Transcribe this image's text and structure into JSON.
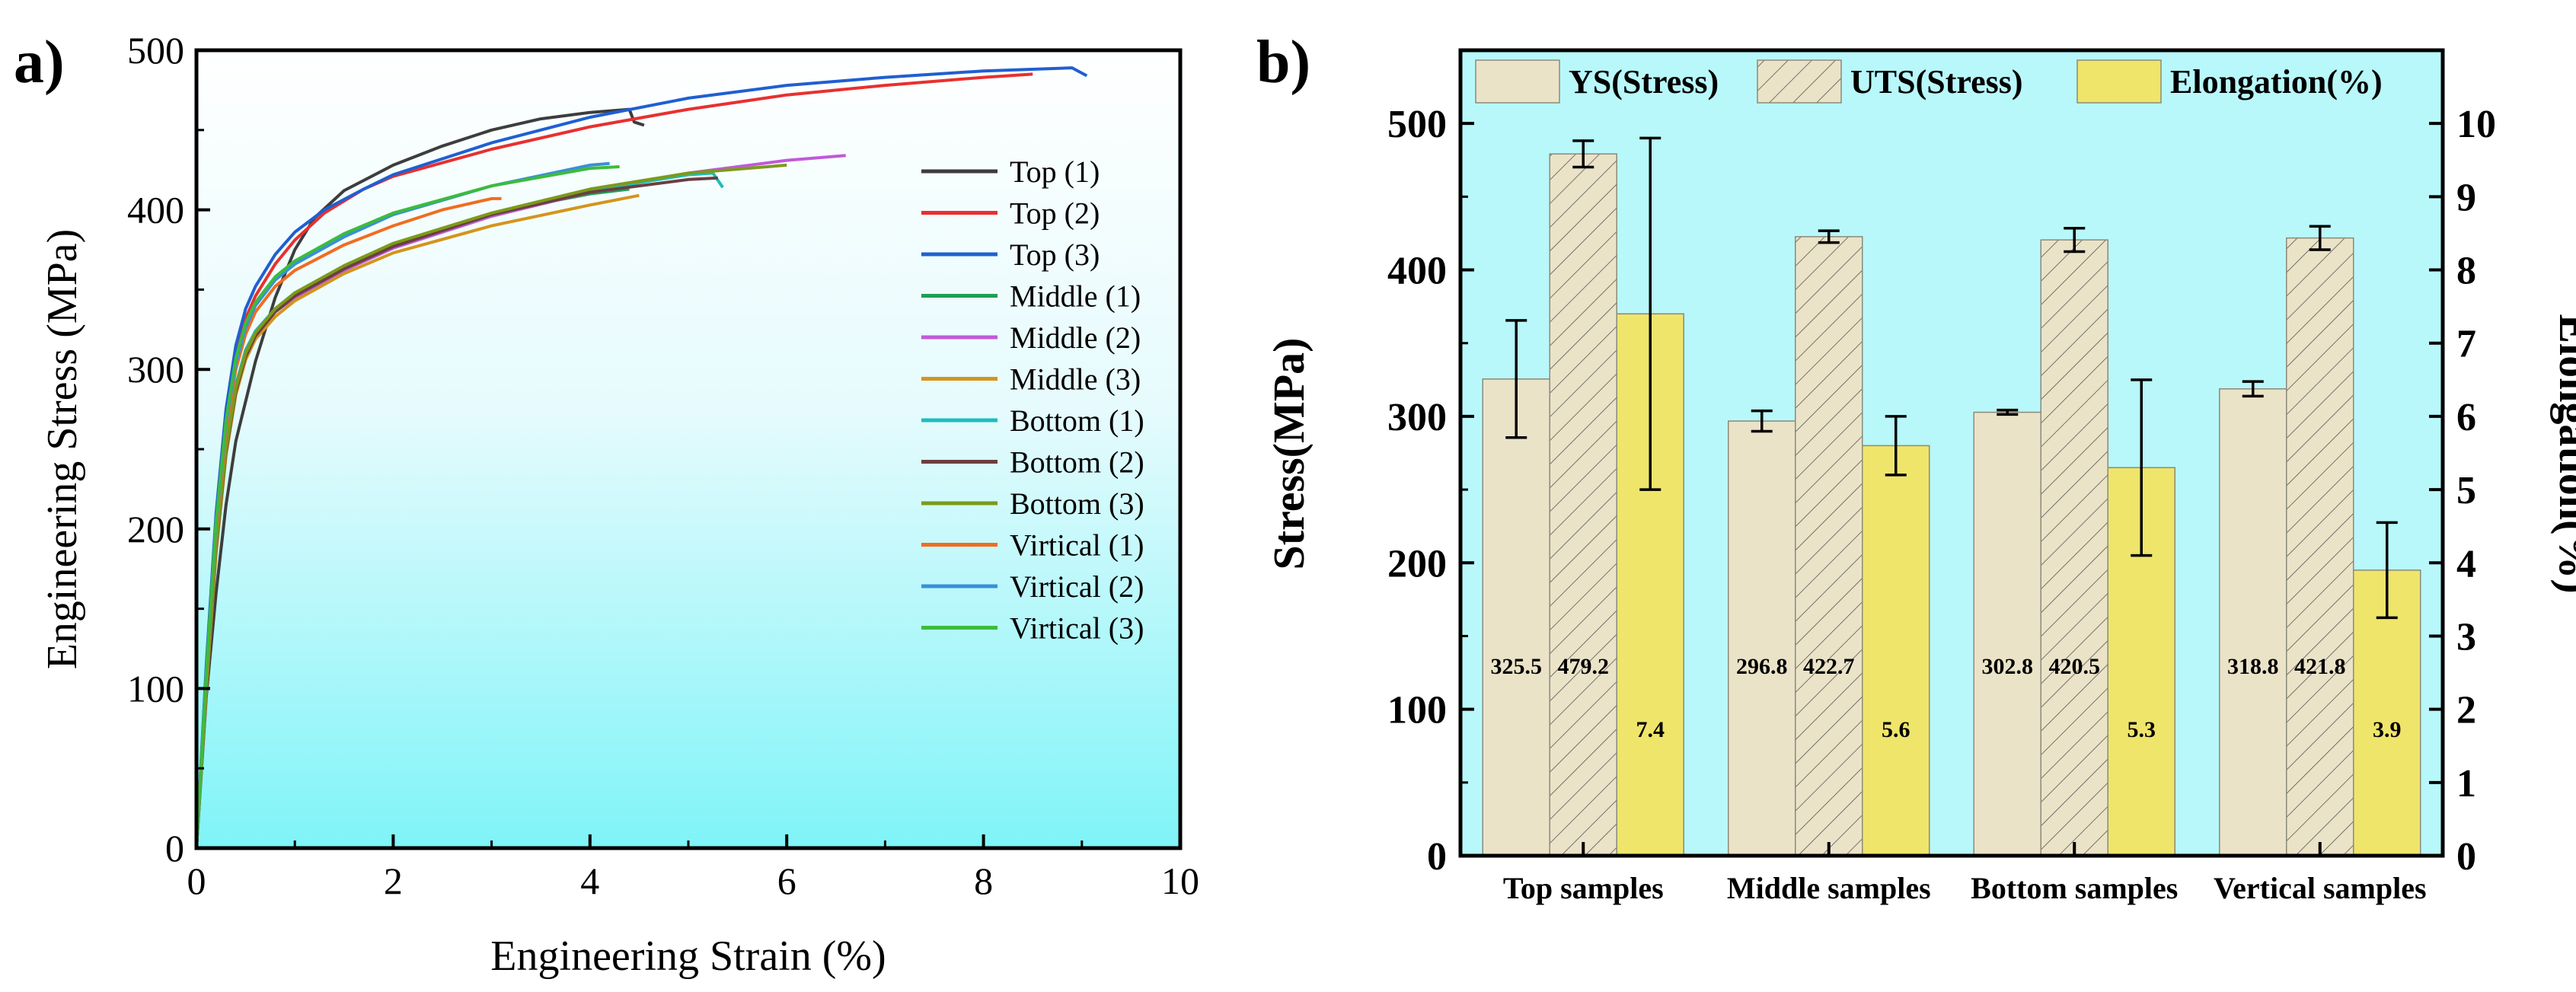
{
  "chart_data": [
    {
      "panel": "a)",
      "type": "line",
      "xlabel": "Engineering Strain (%)",
      "ylabel": "Engineering Stress (MPa)",
      "xlim": [
        0,
        10
      ],
      "ylim": [
        0,
        500
      ],
      "xticks": [
        0,
        2,
        4,
        6,
        8,
        10
      ],
      "yticks": [
        0,
        100,
        200,
        300,
        400,
        500
      ],
      "legend_position": "right-upper",
      "series": [
        {
          "name": "Top (1)",
          "color": "#3d3d3d",
          "points": [
            [
              0,
              0
            ],
            [
              0.1,
              95
            ],
            [
              0.2,
              160
            ],
            [
              0.3,
              215
            ],
            [
              0.4,
              255
            ],
            [
              0.5,
              280
            ],
            [
              0.6,
              305
            ],
            [
              0.8,
              345
            ],
            [
              1.0,
              375
            ],
            [
              1.2,
              395
            ],
            [
              1.5,
              412
            ],
            [
              2,
              428
            ],
            [
              2.5,
              440
            ],
            [
              3,
              450
            ],
            [
              3.5,
              457
            ],
            [
              4,
              461
            ],
            [
              4.4,
              463
            ],
            [
              4.45,
              455
            ],
            [
              4.55,
              453
            ]
          ]
        },
        {
          "name": "Top (2)",
          "color": "#e8302f",
          "points": [
            [
              0,
              0
            ],
            [
              0.1,
              110
            ],
            [
              0.2,
              205
            ],
            [
              0.3,
              270
            ],
            [
              0.4,
              310
            ],
            [
              0.5,
              332
            ],
            [
              0.6,
              346
            ],
            [
              0.8,
              366
            ],
            [
              1.0,
              381
            ],
            [
              1.3,
              398
            ],
            [
              1.7,
              413
            ],
            [
              2,
              421
            ],
            [
              3,
              438
            ],
            [
              4,
              452
            ],
            [
              5,
              463
            ],
            [
              6,
              472
            ],
            [
              7,
              478
            ],
            [
              8,
              483
            ],
            [
              8.5,
              485
            ]
          ]
        },
        {
          "name": "Top (3)",
          "color": "#1f5fd1",
          "points": [
            [
              0,
              0
            ],
            [
              0.1,
              115
            ],
            [
              0.2,
              210
            ],
            [
              0.3,
              275
            ],
            [
              0.4,
              315
            ],
            [
              0.5,
              338
            ],
            [
              0.6,
              352
            ],
            [
              0.8,
              372
            ],
            [
              1.0,
              386
            ],
            [
              1.3,
              400
            ],
            [
              1.7,
              413
            ],
            [
              2,
              422
            ],
            [
              3,
              442
            ],
            [
              4,
              458
            ],
            [
              5,
              470
            ],
            [
              6,
              478
            ],
            [
              7,
              483
            ],
            [
              8,
              487
            ],
            [
              8.9,
              489
            ],
            [
              9.05,
              484
            ]
          ]
        },
        {
          "name": "Middle (1)",
          "color": "#1e9e5a",
          "points": [
            [
              0,
              0
            ],
            [
              0.1,
              105
            ],
            [
              0.2,
              195
            ],
            [
              0.3,
              255
            ],
            [
              0.4,
              290
            ],
            [
              0.5,
              312
            ],
            [
              0.6,
              324
            ],
            [
              0.8,
              338
            ],
            [
              1.0,
              347
            ],
            [
              1.5,
              364
            ],
            [
              2,
              377
            ],
            [
              2.5,
              387
            ],
            [
              3,
              396
            ],
            [
              3.5,
              404
            ],
            [
              4,
              410
            ],
            [
              4.4,
              413
            ]
          ]
        },
        {
          "name": "Middle (2)",
          "color": "#c05ad8",
          "points": [
            [
              0,
              0
            ],
            [
              0.1,
              100
            ],
            [
              0.2,
              190
            ],
            [
              0.3,
              250
            ],
            [
              0.4,
              287
            ],
            [
              0.5,
              309
            ],
            [
              0.6,
              322
            ],
            [
              0.8,
              336
            ],
            [
              1.0,
              345
            ],
            [
              1.5,
              362
            ],
            [
              2,
              376
            ],
            [
              3,
              396
            ],
            [
              4,
              411
            ],
            [
              5,
              423
            ],
            [
              6,
              431
            ],
            [
              6.6,
              434
            ]
          ]
        },
        {
          "name": "Middle (3)",
          "color": "#d4951b",
          "points": [
            [
              0,
              0
            ],
            [
              0.1,
              98
            ],
            [
              0.2,
              185
            ],
            [
              0.3,
              246
            ],
            [
              0.4,
              284
            ],
            [
              0.5,
              306
            ],
            [
              0.6,
              319
            ],
            [
              0.8,
              333
            ],
            [
              1.0,
              343
            ],
            [
              1.5,
              360
            ],
            [
              2,
              373
            ],
            [
              3,
              390
            ],
            [
              4,
              403
            ],
            [
              4.5,
              409
            ]
          ]
        },
        {
          "name": "Bottom (1)",
          "color": "#1fbcbc",
          "points": [
            [
              0,
              0
            ],
            [
              0.1,
              102
            ],
            [
              0.2,
              192
            ],
            [
              0.3,
              252
            ],
            [
              0.4,
              289
            ],
            [
              0.5,
              311
            ],
            [
              0.6,
              324
            ],
            [
              0.8,
              338
            ],
            [
              1.0,
              348
            ],
            [
              1.5,
              364
            ],
            [
              2,
              378
            ],
            [
              3,
              397
            ],
            [
              4,
              412
            ],
            [
              5,
              422
            ],
            [
              5.25,
              423
            ],
            [
              5.35,
              414
            ]
          ]
        },
        {
          "name": "Bottom (2)",
          "color": "#6b3f3f",
          "points": [
            [
              0,
              0
            ],
            [
              0.1,
              100
            ],
            [
              0.2,
              188
            ],
            [
              0.3,
              248
            ],
            [
              0.4,
              286
            ],
            [
              0.5,
              308
            ],
            [
              0.6,
              321
            ],
            [
              0.8,
              336
            ],
            [
              1.0,
              346
            ],
            [
              1.5,
              363
            ],
            [
              2,
              377
            ],
            [
              3,
              397
            ],
            [
              4,
              411
            ],
            [
              5,
              419
            ],
            [
              5.3,
              420
            ]
          ]
        },
        {
          "name": "Bottom (3)",
          "color": "#7c9a1a",
          "points": [
            [
              0,
              0
            ],
            [
              0.1,
              100
            ],
            [
              0.2,
              190
            ],
            [
              0.3,
              250
            ],
            [
              0.4,
              288
            ],
            [
              0.5,
              310
            ],
            [
              0.6,
              323
            ],
            [
              0.8,
              338
            ],
            [
              1.0,
              348
            ],
            [
              1.5,
              365
            ],
            [
              2,
              379
            ],
            [
              3,
              398
            ],
            [
              4,
              413
            ],
            [
              5,
              423
            ],
            [
              6,
              428
            ]
          ]
        },
        {
          "name": "Virtical (1)",
          "color": "#f06d1f",
          "points": [
            [
              0,
              0
            ],
            [
              0.1,
              108
            ],
            [
              0.2,
              200
            ],
            [
              0.3,
              262
            ],
            [
              0.4,
              300
            ],
            [
              0.5,
              322
            ],
            [
              0.6,
              336
            ],
            [
              0.8,
              352
            ],
            [
              1.0,
              362
            ],
            [
              1.5,
              378
            ],
            [
              2,
              390
            ],
            [
              2.5,
              400
            ],
            [
              3,
              407
            ],
            [
              3.1,
              407
            ]
          ]
        },
        {
          "name": "Virtical (2)",
          "color": "#3a8fd8",
          "points": [
            [
              0,
              0
            ],
            [
              0.1,
              110
            ],
            [
              0.2,
              203
            ],
            [
              0.3,
              266
            ],
            [
              0.4,
              304
            ],
            [
              0.5,
              326
            ],
            [
              0.6,
              340
            ],
            [
              0.8,
              356
            ],
            [
              1.0,
              366
            ],
            [
              1.5,
              383
            ],
            [
              2,
              397
            ],
            [
              3,
              415
            ],
            [
              4,
              428
            ],
            [
              4.2,
              429
            ]
          ]
        },
        {
          "name": "Virtical (3)",
          "color": "#3dbb3d",
          "points": [
            [
              0,
              0
            ],
            [
              0.1,
              110
            ],
            [
              0.2,
              205
            ],
            [
              0.3,
              268
            ],
            [
              0.4,
              307
            ],
            [
              0.5,
              329
            ],
            [
              0.6,
              342
            ],
            [
              0.8,
              358
            ],
            [
              1.0,
              368
            ],
            [
              1.5,
              385
            ],
            [
              2,
              398
            ],
            [
              3,
              415
            ],
            [
              4,
              426
            ],
            [
              4.3,
              427
            ]
          ]
        }
      ]
    },
    {
      "panel": "b)",
      "type": "bar",
      "ylabel": "Stress(MPa)",
      "y2label": "Elongation(%)",
      "ylim": [
        0,
        550
      ],
      "y2lim": [
        0,
        11
      ],
      "yticks": [
        0,
        100,
        200,
        300,
        400,
        500
      ],
      "y2ticks": [
        0,
        1,
        2,
        3,
        4,
        5,
        6,
        7,
        8,
        9,
        10
      ],
      "categories": [
        "Top samples",
        "Middle samples",
        "Bottom samples",
        "Vertical samples"
      ],
      "series": [
        {
          "name": "YS(Stress)",
          "axis": "left",
          "fill": "#ebe3c8",
          "hatch": false,
          "values": [
            325.5,
            296.8,
            302.8,
            318.8
          ],
          "errors": [
            40,
            7,
            1.5,
            5
          ],
          "labels": [
            "325.5",
            "296.8",
            "302.8",
            "318.8"
          ]
        },
        {
          "name": "UTS(Stress)",
          "axis": "left",
          "fill": "#ebe3c8",
          "hatch": true,
          "values": [
            479.2,
            422.7,
            420.5,
            421.8
          ],
          "errors": [
            9,
            4,
            8,
            8
          ],
          "labels": [
            "479.2",
            "422.7",
            "420.5",
            "421.8"
          ]
        },
        {
          "name": "Elongation(%)",
          "axis": "right",
          "fill": "#efe56b",
          "hatch": false,
          "values": [
            7.4,
            5.6,
            5.3,
            3.9
          ],
          "errors": [
            2.4,
            0.4,
            1.2,
            0.65
          ],
          "labels": [
            "7.4",
            "5.6",
            "5.3",
            "3.9"
          ]
        }
      ],
      "legend_position": "top"
    }
  ]
}
